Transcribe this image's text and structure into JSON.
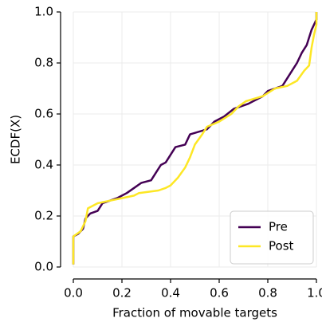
{
  "chart_data": {
    "type": "line",
    "xlabel": "Fraction of movable targets",
    "ylabel": "ECDF(X)",
    "xlim": [
      0,
      1
    ],
    "ylim": [
      0,
      1
    ],
    "xticks": [
      {
        "value": 0,
        "label": "0.0"
      },
      0.2,
      0.4,
      0.6,
      0.8,
      {
        "value": 1,
        "label": "1.0"
      }
    ],
    "yticks": [
      {
        "value": 0,
        "label": "0.0"
      },
      0.2,
      0.4,
      0.6,
      0.8,
      {
        "value": 1,
        "label": "1.0"
      }
    ],
    "grid": true,
    "legend": "lower right",
    "series": [
      {
        "name": "Pre",
        "color": "#440154",
        "x": [
          0,
          0,
          0.02,
          0.04,
          0.05,
          0.07,
          0.1,
          0.12,
          0.18,
          0.22,
          0.25,
          0.28,
          0.32,
          0.34,
          0.36,
          0.38,
          0.4,
          0.42,
          0.46,
          0.48,
          0.55,
          0.58,
          0.62,
          0.66,
          0.72,
          0.78,
          0.8,
          0.86,
          0.88,
          0.9,
          0.92,
          0.94,
          0.96,
          0.98,
          1,
          1
        ],
        "values": [
          0.01,
          0.12,
          0.13,
          0.15,
          0.19,
          0.21,
          0.22,
          0.25,
          0.27,
          0.29,
          0.31,
          0.33,
          0.34,
          0.37,
          0.4,
          0.41,
          0.44,
          0.47,
          0.48,
          0.52,
          0.54,
          0.57,
          0.59,
          0.62,
          0.64,
          0.67,
          0.69,
          0.71,
          0.74,
          0.77,
          0.8,
          0.84,
          0.87,
          0.93,
          0.97,
          1
        ]
      },
      {
        "name": "Post",
        "color": "#fde725",
        "x": [
          0,
          0,
          0.03,
          0.05,
          0.06,
          0.1,
          0.15,
          0.2,
          0.25,
          0.27,
          0.35,
          0.38,
          0.4,
          0.43,
          0.46,
          0.48,
          0.5,
          0.53,
          0.55,
          0.6,
          0.65,
          0.68,
          0.71,
          0.78,
          0.83,
          0.88,
          0.92,
          0.95,
          0.97,
          0.98,
          0.99,
          1,
          1
        ],
        "values": [
          0.01,
          0.12,
          0.14,
          0.18,
          0.23,
          0.25,
          0.26,
          0.27,
          0.28,
          0.29,
          0.3,
          0.31,
          0.32,
          0.35,
          0.39,
          0.43,
          0.48,
          0.52,
          0.55,
          0.57,
          0.6,
          0.63,
          0.65,
          0.67,
          0.7,
          0.71,
          0.73,
          0.77,
          0.79,
          0.86,
          0.91,
          0.95,
          1
        ]
      }
    ]
  }
}
